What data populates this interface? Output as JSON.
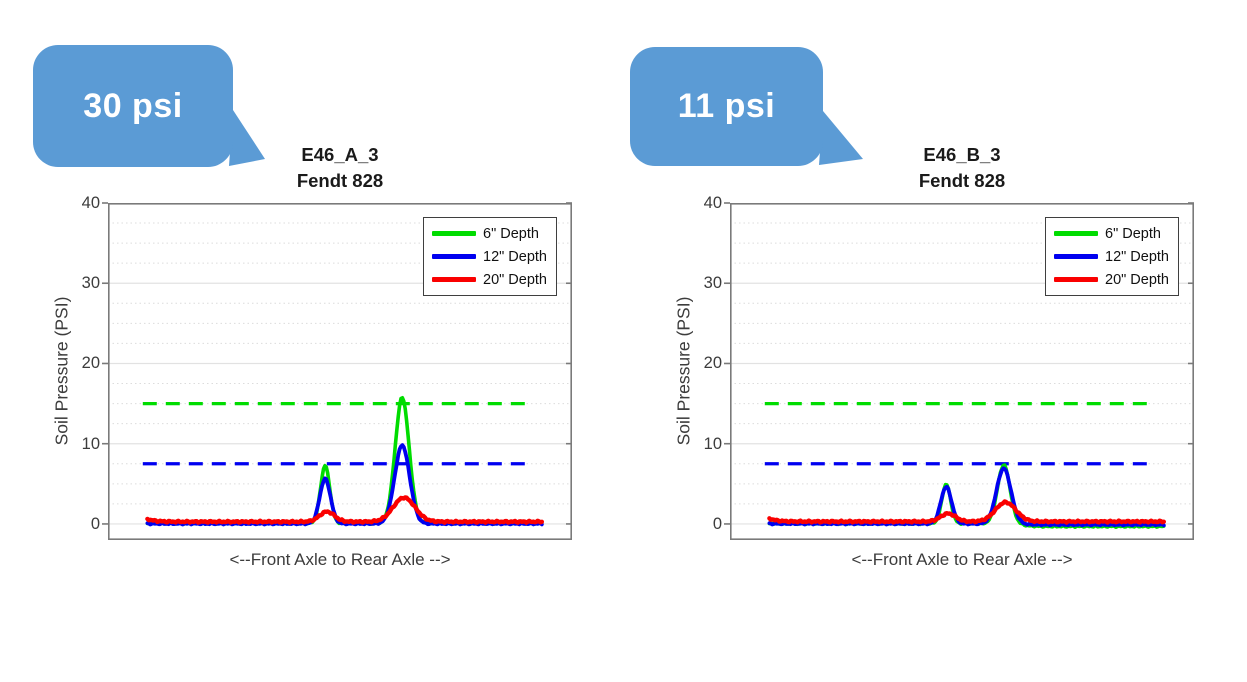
{
  "callouts": [
    {
      "text": "30 psi",
      "fill": "#5b9bd5",
      "text_color": "#ffffff"
    },
    {
      "text": "11 psi",
      "fill": "#5b9bd5",
      "text_color": "#ffffff"
    }
  ],
  "chart_data": [
    {
      "type": "line",
      "title_line1": "E46_A_3",
      "title_line2": "Fendt 828",
      "ylabel": "Soil Pressure (PSI)",
      "xlabel": "<--Front Axle to Rear Axle -->",
      "ylim": [
        -2,
        40
      ],
      "yticks": [
        0,
        10,
        20,
        30,
        40
      ],
      "minor_grid_step": 2.5,
      "grid": "major-solid, minor-dotted",
      "legend_position": "top-right",
      "data_x_span": [
        0.085,
        0.935
      ],
      "reference_line_x_span": [
        0.075,
        0.915
      ],
      "reference_lines": [
        {
          "y": 15,
          "color": "#00dc00",
          "style": "dashed"
        },
        {
          "y": 7.5,
          "color": "#0000f0",
          "style": "dashed"
        }
      ],
      "series": [
        {
          "name": "6\" Depth",
          "color": "#00dc00",
          "baseline": 0.08,
          "noise": 0.1,
          "peaks": [
            {
              "center": 0.468,
              "height": 7.2,
              "sigma": 0.01
            },
            {
              "center": 0.634,
              "height": 15.7,
              "sigma": 0.015
            }
          ]
        },
        {
          "name": "12\" Depth",
          "color": "#0000f0",
          "baseline": 0.03,
          "noise": 0.1,
          "peaks": [
            {
              "center": 0.468,
              "height": 5.6,
              "sigma": 0.0115
            },
            {
              "center": 0.634,
              "height": 9.8,
              "sigma": 0.016
            }
          ]
        },
        {
          "name": "20\" Depth",
          "color": "#fa0000",
          "baseline": 0.28,
          "noise": 0.12,
          "start_spike": 0.35,
          "peaks": [
            {
              "center": 0.472,
              "height": 1.25,
              "sigma": 0.016
            },
            {
              "center": 0.638,
              "height": 3.0,
              "sigma": 0.0235
            }
          ]
        }
      ]
    },
    {
      "type": "line",
      "title_line1": "E46_B_3",
      "title_line2": "Fendt 828",
      "ylabel": "Soil Pressure (PSI)",
      "xlabel": "<--Front Axle to Rear Axle -->",
      "ylim": [
        -2,
        40
      ],
      "yticks": [
        0,
        10,
        20,
        30,
        40
      ],
      "minor_grid_step": 2.5,
      "grid": "major-solid, minor-dotted",
      "legend_position": "top-right",
      "data_x_span": [
        0.085,
        0.935
      ],
      "reference_line_x_span": [
        0.075,
        0.915
      ],
      "reference_lines": [
        {
          "y": 15,
          "color": "#00dc00",
          "style": "dashed"
        },
        {
          "y": 7.5,
          "color": "#0000f0",
          "style": "dashed"
        }
      ],
      "series": [
        {
          "name": "6\" Depth",
          "color": "#00dc00",
          "baseline": 0.05,
          "noise": 0.1,
          "tail_offset": -0.35,
          "tail_start": 0.63,
          "peaks": [
            {
              "center": 0.466,
              "height": 4.9,
              "sigma": 0.0095
            },
            {
              "center": 0.59,
              "height": 7.3,
              "sigma": 0.0135
            }
          ]
        },
        {
          "name": "12\" Depth",
          "color": "#0000f0",
          "baseline": 0.03,
          "noise": 0.1,
          "tail_offset": -0.12,
          "tail_start": 0.63,
          "peaks": [
            {
              "center": 0.466,
              "height": 4.6,
              "sigma": 0.0115
            },
            {
              "center": 0.59,
              "height": 6.9,
              "sigma": 0.0155
            }
          ]
        },
        {
          "name": "20\" Depth",
          "color": "#fa0000",
          "baseline": 0.3,
          "noise": 0.12,
          "start_spike": 0.4,
          "peaks": [
            {
              "center": 0.47,
              "height": 1.0,
              "sigma": 0.016
            },
            {
              "center": 0.594,
              "height": 2.4,
              "sigma": 0.022
            }
          ]
        }
      ]
    }
  ]
}
